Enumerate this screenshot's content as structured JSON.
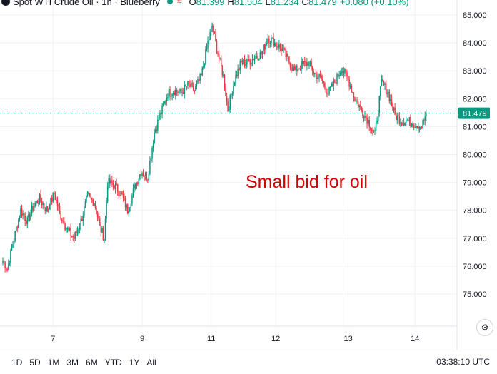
{
  "header": {
    "title": "Spot WTI Crude Oil · 1h · Blueberry",
    "o_label": "O",
    "o_value": "81.399",
    "h_label": "H",
    "h_value": "81.504",
    "l_label": "L",
    "l_value": "81.234",
    "c_label": "C",
    "c_value": "81.479",
    "change": "+0.080 (+0.10%)"
  },
  "annotation": "Small bid for oil",
  "last_price": "81.479",
  "colors": {
    "up": "#089981",
    "down": "#f23645",
    "annotation": "#d50000",
    "grid": "#eef0f3"
  },
  "range_buttons": [
    "1D",
    "5D",
    "1M",
    "3M",
    "6M",
    "YTD",
    "1Y",
    "All"
  ],
  "clock": "03:38:10 UTC",
  "chart_data": {
    "type": "candlestick",
    "x_ticks": [
      "7",
      "9",
      "11",
      "12",
      "13",
      "14"
    ],
    "y_ticks": [
      "75.000",
      "76.000",
      "77.000",
      "78.000",
      "79.000",
      "80.000",
      "81.000",
      "82.000",
      "83.000",
      "84.000",
      "85.000"
    ],
    "ylim": [
      74.5,
      85.1
    ],
    "grid": true,
    "anchors": [
      {
        "x": 0,
        "y": 76.2
      },
      {
        "x": 4,
        "y": 75.9
      },
      {
        "x": 10,
        "y": 77.0
      },
      {
        "x": 16,
        "y": 78.0
      },
      {
        "x": 22,
        "y": 77.6
      },
      {
        "x": 28,
        "y": 78.2
      },
      {
        "x": 33,
        "y": 78.4
      },
      {
        "x": 40,
        "y": 78.0
      },
      {
        "x": 46,
        "y": 78.6
      },
      {
        "x": 52,
        "y": 77.8
      },
      {
        "x": 58,
        "y": 77.3
      },
      {
        "x": 64,
        "y": 77.0
      },
      {
        "x": 70,
        "y": 77.6
      },
      {
        "x": 76,
        "y": 78.5
      },
      {
        "x": 82,
        "y": 78.3
      },
      {
        "x": 88,
        "y": 77.3
      },
      {
        "x": 91,
        "y": 77.0
      },
      {
        "x": 94,
        "y": 79.0
      },
      {
        "x": 100,
        "y": 78.9
      },
      {
        "x": 106,
        "y": 78.6
      },
      {
        "x": 112,
        "y": 78.0
      },
      {
        "x": 118,
        "y": 78.8
      },
      {
        "x": 124,
        "y": 79.4
      },
      {
        "x": 130,
        "y": 79.2
      },
      {
        "x": 136,
        "y": 80.8
      },
      {
        "x": 142,
        "y": 81.5
      },
      {
        "x": 148,
        "y": 82.2
      },
      {
        "x": 154,
        "y": 82.3
      },
      {
        "x": 160,
        "y": 82.2
      },
      {
        "x": 166,
        "y": 82.5
      },
      {
        "x": 172,
        "y": 82.3
      },
      {
        "x": 178,
        "y": 82.8
      },
      {
        "x": 184,
        "y": 84.0
      },
      {
        "x": 188,
        "y": 84.6
      },
      {
        "x": 192,
        "y": 83.8
      },
      {
        "x": 198,
        "y": 82.8
      },
      {
        "x": 202,
        "y": 81.6
      },
      {
        "x": 208,
        "y": 82.7
      },
      {
        "x": 214,
        "y": 83.3
      },
      {
        "x": 220,
        "y": 83.3
      },
      {
        "x": 226,
        "y": 83.5
      },
      {
        "x": 232,
        "y": 83.6
      },
      {
        "x": 238,
        "y": 84.2
      },
      {
        "x": 244,
        "y": 84.0
      },
      {
        "x": 250,
        "y": 83.8
      },
      {
        "x": 256,
        "y": 83.4
      },
      {
        "x": 262,
        "y": 83.0
      },
      {
        "x": 268,
        "y": 83.2
      },
      {
        "x": 274,
        "y": 83.3
      },
      {
        "x": 280,
        "y": 82.9
      },
      {
        "x": 286,
        "y": 82.7
      },
      {
        "x": 292,
        "y": 82.2
      },
      {
        "x": 298,
        "y": 82.6
      },
      {
        "x": 304,
        "y": 83.1
      },
      {
        "x": 310,
        "y": 82.7
      },
      {
        "x": 316,
        "y": 82.0
      },
      {
        "x": 322,
        "y": 81.6
      },
      {
        "x": 328,
        "y": 81.2
      },
      {
        "x": 334,
        "y": 80.7
      },
      {
        "x": 340,
        "y": 82.6
      },
      {
        "x": 346,
        "y": 82.2
      },
      {
        "x": 352,
        "y": 81.4
      },
      {
        "x": 358,
        "y": 81.2
      },
      {
        "x": 364,
        "y": 81.2
      },
      {
        "x": 370,
        "y": 81.1
      },
      {
        "x": 376,
        "y": 81.0
      },
      {
        "x": 380,
        "y": 81.48
      }
    ],
    "date_positions": [
      {
        "label": "7",
        "x": 45
      },
      {
        "label": "9",
        "x": 125
      },
      {
        "label": "11",
        "x": 187
      },
      {
        "label": "12",
        "x": 245
      },
      {
        "label": "13",
        "x": 310
      },
      {
        "label": "14",
        "x": 370
      }
    ],
    "x_range": [
      0,
      380
    ],
    "last_value": 81.479
  }
}
